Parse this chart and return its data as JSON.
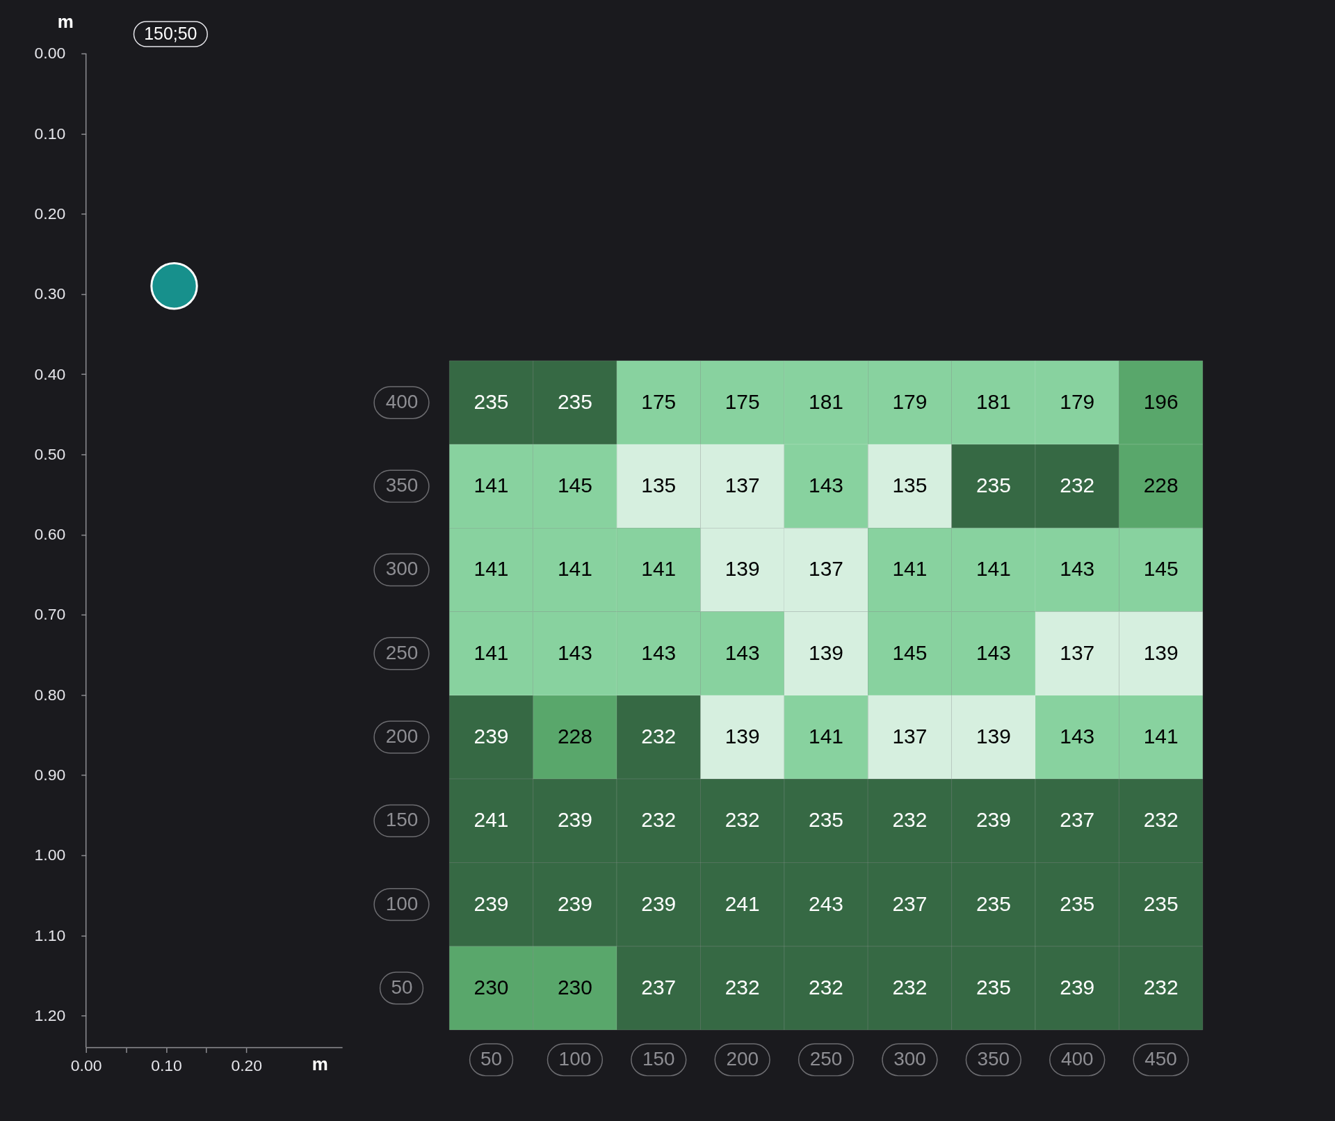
{
  "chart_data": [
    {
      "type": "scatter",
      "title": "150;50",
      "xlabel": "m",
      "ylabel": "m",
      "x": [
        0.11
      ],
      "values": [
        0.29
      ],
      "color": "#17908c",
      "marker": "circle",
      "xlim": [
        0,
        0.32
      ],
      "ylim": [
        1.24,
        0
      ],
      "xticks": [
        {
          "value": 0,
          "label": "0.00"
        },
        {
          "value": 0.05,
          "label": null
        },
        {
          "value": 0.1,
          "label": "0.10"
        },
        {
          "value": 0.15,
          "label": null
        },
        {
          "value": 0.2,
          "label": "0.20"
        }
      ],
      "yticks": [
        {
          "value": 0,
          "label": "0.00"
        },
        {
          "value": 0.1,
          "label": "0.10"
        },
        {
          "value": 0.2,
          "label": "0.20"
        },
        {
          "value": 0.3,
          "label": "0.30"
        },
        {
          "value": 0.4,
          "label": "0.40"
        },
        {
          "value": 0.5,
          "label": "0.50"
        },
        {
          "value": 0.6,
          "label": "0.60"
        },
        {
          "value": 0.7,
          "label": "0.70"
        },
        {
          "value": 0.8,
          "label": "0.80"
        },
        {
          "value": 0.9,
          "label": "0.90"
        },
        {
          "value": 1.0,
          "label": "1.00"
        },
        {
          "value": 1.1,
          "label": "1.10"
        },
        {
          "value": 1.2,
          "label": "1.20"
        }
      ]
    },
    {
      "type": "heatmap",
      "categories": [
        "50",
        "100",
        "150",
        "200",
        "250",
        "300",
        "350",
        "400",
        "450"
      ],
      "y_categories": [
        "400",
        "350",
        "300",
        "250",
        "200",
        "150",
        "100",
        "50"
      ],
      "cells": [
        [
          235,
          235,
          175,
          175,
          181,
          179,
          181,
          179,
          196
        ],
        [
          141,
          145,
          135,
          137,
          143,
          135,
          235,
          232,
          228
        ],
        [
          141,
          141,
          141,
          139,
          137,
          141,
          141,
          143,
          145
        ],
        [
          141,
          143,
          143,
          143,
          139,
          145,
          143,
          137,
          139
        ],
        [
          239,
          228,
          232,
          139,
          141,
          137,
          139,
          143,
          141
        ],
        [
          241,
          239,
          232,
          232,
          235,
          232,
          239,
          237,
          232
        ],
        [
          239,
          239,
          239,
          241,
          243,
          237,
          235,
          235,
          235
        ],
        [
          230,
          230,
          237,
          232,
          232,
          232,
          235,
          239,
          232
        ]
      ],
      "colors": [
        [
          "#366944",
          "#366944",
          "#88d29f",
          "#88d29f",
          "#88d29f",
          "#88d29f",
          "#88d29f",
          "#88d29f",
          "#59a76b"
        ],
        [
          "#88d29f",
          "#88d29f",
          "#d6efdf",
          "#d6efdf",
          "#88d29f",
          "#d6efdf",
          "#366944",
          "#366944",
          "#59a76b"
        ],
        [
          "#88d29f",
          "#88d29f",
          "#88d29f",
          "#d6efdf",
          "#d6efdf",
          "#88d29f",
          "#88d29f",
          "#88d29f",
          "#88d29f"
        ],
        [
          "#88d29f",
          "#88d29f",
          "#88d29f",
          "#88d29f",
          "#d6efdf",
          "#88d29f",
          "#88d29f",
          "#d6efdf",
          "#d6efdf"
        ],
        [
          "#366944",
          "#59a76b",
          "#366944",
          "#d6efdf",
          "#88d29f",
          "#d6efdf",
          "#d6efdf",
          "#88d29f",
          "#88d29f"
        ],
        [
          "#366944",
          "#366944",
          "#366944",
          "#366944",
          "#366944",
          "#366944",
          "#366944",
          "#366944",
          "#366944"
        ],
        [
          "#366944",
          "#366944",
          "#366944",
          "#366944",
          "#366944",
          "#366944",
          "#366944",
          "#366944",
          "#366944"
        ],
        [
          "#59a76b",
          "#59a76b",
          "#366944",
          "#366944",
          "#366944",
          "#366944",
          "#366944",
          "#366944",
          "#366944"
        ]
      ],
      "data_labels": true
    }
  ]
}
